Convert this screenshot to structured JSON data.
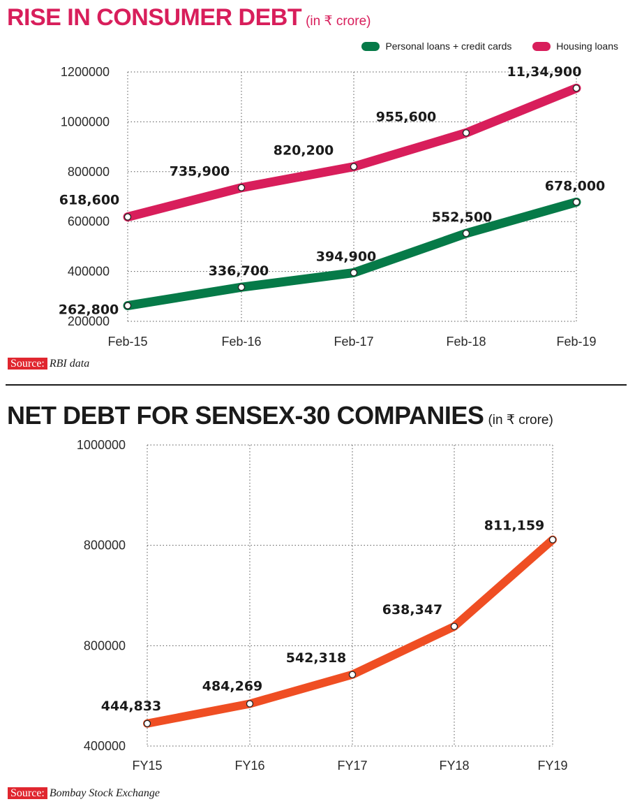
{
  "chart_data": [
    {
      "type": "line",
      "title": "RISE IN CONSUMER DEBT",
      "unit": "(in ₹ crore)",
      "categories": [
        "Feb-15",
        "Feb-16",
        "Feb-17",
        "Feb-18",
        "Feb-19"
      ],
      "y_ticks": [
        "200000",
        "400000",
        "600000",
        "800000",
        "1000000",
        "1200000"
      ],
      "ylim": [
        200000,
        1200000
      ],
      "grid": true,
      "legend_position": "top-right",
      "series": [
        {
          "name": "Personal loans + credit cards",
          "color": "#067a48",
          "values": [
            262800,
            336700,
            394900,
            552500,
            678000
          ],
          "labels": [
            "262,800",
            "336,700",
            "394,900",
            "552,500",
            "678,000"
          ]
        },
        {
          "name": "Housing loans",
          "color": "#d81e5b",
          "values": [
            618600,
            735900,
            820200,
            955600,
            1134900
          ],
          "labels": [
            "618,600",
            "735,900",
            "820,200",
            "955,600",
            "11,34,900"
          ]
        }
      ],
      "source_tag": "Source:",
      "source_text": "RBI data"
    },
    {
      "type": "line",
      "title": "NET DEBT FOR SENSEX-30 COMPANIES",
      "unit": "(in ₹ crore)",
      "categories": [
        "FY15",
        "FY16",
        "FY17",
        "FY18",
        "FY19"
      ],
      "y_ticks": [
        "400000",
        "800000",
        "800000",
        "1000000"
      ],
      "ylim": [
        400000,
        1000000
      ],
      "grid": true,
      "series": [
        {
          "color": "#ef4e23",
          "values": [
            444833,
            484269,
            542318,
            638347,
            811159
          ],
          "labels": [
            "444,833",
            "484,269",
            "542,318",
            "638,347",
            "811,159"
          ]
        }
      ],
      "source_tag": "Source:",
      "source_text": "Bombay Stock Exchange"
    }
  ]
}
